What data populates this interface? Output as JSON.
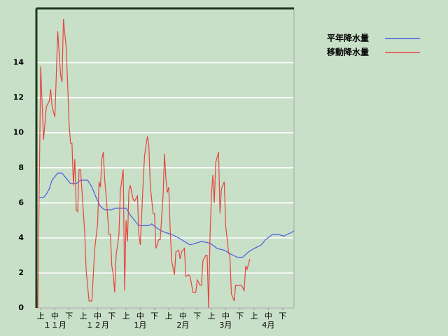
{
  "chart_data": {
    "type": "line",
    "xlim": [
      0,
      181
    ],
    "xticks": [
      {
        "value": 3,
        "label": "上"
      },
      {
        "value": 13,
        "label": "中"
      },
      {
        "value": 23,
        "label": "下"
      },
      {
        "value": 33,
        "label": "上"
      },
      {
        "value": 43,
        "label": "中"
      },
      {
        "value": 53,
        "label": "下"
      },
      {
        "value": 63,
        "label": "上"
      },
      {
        "value": 73,
        "label": "中"
      },
      {
        "value": 83,
        "label": "下"
      },
      {
        "value": 93,
        "label": "上"
      },
      {
        "value": 103,
        "label": "中"
      },
      {
        "value": 113,
        "label": "下"
      },
      {
        "value": 123,
        "label": "上"
      },
      {
        "value": 133,
        "label": "中"
      },
      {
        "value": 143,
        "label": "下"
      },
      {
        "value": 153,
        "label": "上"
      },
      {
        "value": 163,
        "label": "中"
      },
      {
        "value": 173,
        "label": "下"
      }
    ],
    "x_groups": [
      {
        "value": 13,
        "label": "１１月"
      },
      {
        "value": 43,
        "label": "１２月"
      },
      {
        "value": 73,
        "label": "1月"
      },
      {
        "value": 103,
        "label": "2月"
      },
      {
        "value": 133,
        "label": "3月"
      },
      {
        "value": 163,
        "label": "4月"
      }
    ],
    "ylim": [
      0,
      17.1
    ],
    "yticks": [
      0,
      2,
      4,
      6,
      8,
      10,
      12,
      14
    ],
    "grid": true,
    "series": [
      {
        "name": "平年降水量",
        "color": "#4a5ee0",
        "x": [
          2,
          5,
          7,
          9,
          11,
          15,
          18,
          21,
          24,
          28,
          31,
          36,
          39,
          42,
          45,
          48,
          53,
          55,
          63,
          66,
          69,
          72,
          79,
          81,
          84,
          88,
          91,
          95,
          100,
          104,
          108,
          112,
          116,
          122,
          127,
          132,
          136,
          141,
          145,
          149,
          153,
          158,
          161,
          166,
          170,
          174,
          176,
          179,
          181
        ],
        "values": [
          6.3,
          6.3,
          6.5,
          6.8,
          7.3,
          7.7,
          7.7,
          7.4,
          7.1,
          7.1,
          7.3,
          7.3,
          6.9,
          6.3,
          5.8,
          5.6,
          5.6,
          5.7,
          5.7,
          5.3,
          5.0,
          4.7,
          4.7,
          4.8,
          4.6,
          4.4,
          4.3,
          4.2,
          4.0,
          3.8,
          3.6,
          3.7,
          3.8,
          3.7,
          3.4,
          3.3,
          3.1,
          2.9,
          2.9,
          3.2,
          3.4,
          3.6,
          3.9,
          4.2,
          4.2,
          4.1,
          4.2,
          4.3,
          4.4
        ]
      },
      {
        "name": "移動降水量",
        "color": "#e8453c",
        "x": [
          1,
          3,
          5,
          7,
          9,
          10,
          11,
          13,
          15,
          17,
          18,
          19,
          21,
          23,
          24,
          25,
          26,
          27,
          28,
          29,
          30,
          31,
          33,
          34,
          35,
          37,
          39,
          41,
          43,
          44,
          45,
          46,
          47,
          48,
          49,
          51,
          52,
          53,
          54,
          55,
          56,
          58,
          59,
          61,
          62,
          63,
          64,
          65,
          66,
          68,
          69,
          71,
          72,
          73,
          75,
          76,
          78,
          79,
          80,
          82,
          83,
          84,
          86,
          87,
          89,
          90,
          91,
          92,
          93,
          94,
          95,
          97,
          98,
          100,
          101,
          102,
          104,
          105,
          107,
          108,
          110,
          112,
          113,
          115,
          116,
          117,
          119,
          120,
          121,
          122,
          123,
          124,
          125,
          126,
          128,
          129,
          130,
          132,
          133,
          135,
          136,
          137,
          139,
          140,
          142,
          144,
          146,
          147,
          148,
          150
        ],
        "values": [
          0,
          13.8,
          9.6,
          11.5,
          11.8,
          12.5,
          11.5,
          10.9,
          15.8,
          13.3,
          12.9,
          16.5,
          14.8,
          10.5,
          9.4,
          9.4,
          7.0,
          8.5,
          5.6,
          5.5,
          7.9,
          7.9,
          5.5,
          4.2,
          2.1,
          0.4,
          0.4,
          3.4,
          4.8,
          7.2,
          6.9,
          8.5,
          8.9,
          7.3,
          6.4,
          4.2,
          4.2,
          2.4,
          1.9,
          0.9,
          3.0,
          4.2,
          6.7,
          7.9,
          1.0,
          5.0,
          3.8,
          6.7,
          7.0,
          6.2,
          6.1,
          6.4,
          4.2,
          3.6,
          7.1,
          8.7,
          9.8,
          9.3,
          7.0,
          5.4,
          5.4,
          3.4,
          3.9,
          3.9,
          6.4,
          8.8,
          7.4,
          6.6,
          6.9,
          4.5,
          2.7,
          1.9,
          3.2,
          3.3,
          2.8,
          3.2,
          3.4,
          1.8,
          1.9,
          1.8,
          0.9,
          0.9,
          1.6,
          1.3,
          1.3,
          2.7,
          3.0,
          3.0,
          0,
          4.1,
          6.5,
          7.6,
          6.0,
          8.3,
          8.9,
          5.4,
          6.8,
          7.2,
          4.7,
          3.2,
          2.9,
          0.8,
          0.4,
          1.3,
          1.3,
          1.3,
          1.0,
          2.4,
          2.2,
          2.8
        ]
      }
    ]
  }
}
